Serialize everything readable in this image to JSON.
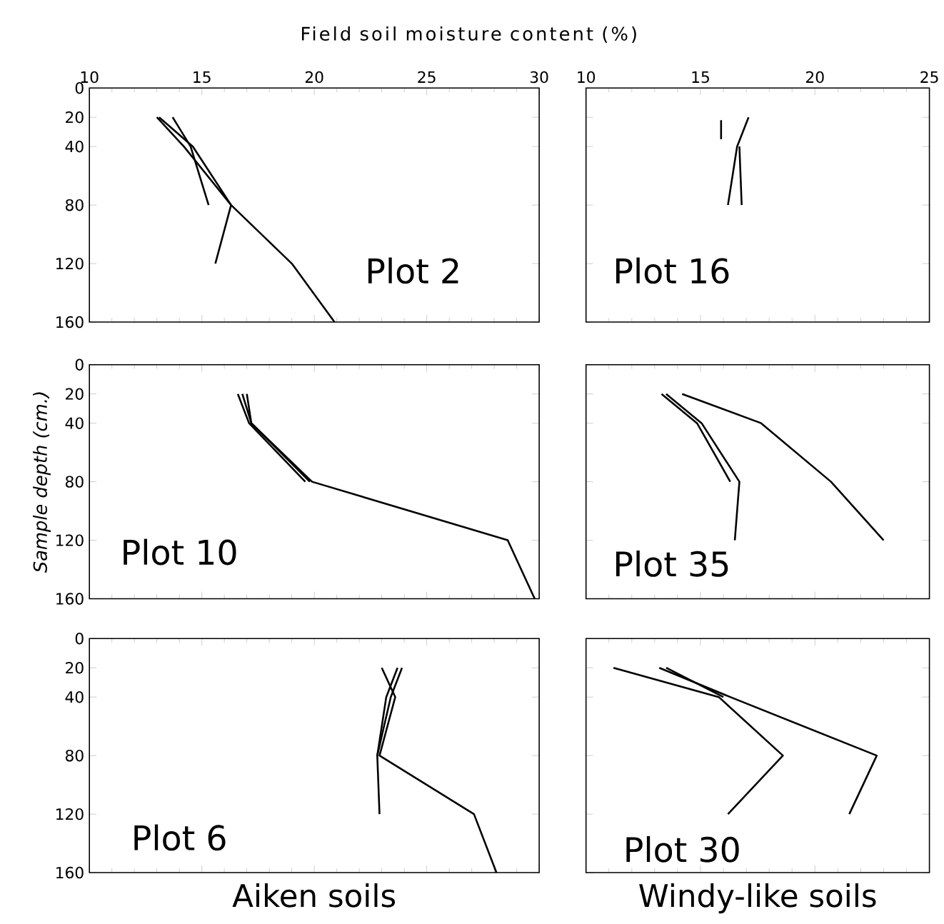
{
  "chart_data": [
    {
      "type": "line",
      "title": "Plot 2",
      "xlabel": "Field soil moisture content (%)",
      "xlim": [
        10,
        30
      ],
      "xticks": [
        10,
        15,
        20,
        25,
        30
      ],
      "ylim": [
        160,
        0
      ],
      "yticks": [
        0,
        20,
        40,
        80,
        120,
        160
      ],
      "line_style": "solid",
      "series": [
        {
          "color": "#000000",
          "x": [
            13.0,
            14.2,
            16.3,
            19.0,
            20.9
          ],
          "values": [
            20,
            40,
            80,
            120,
            160
          ]
        },
        {
          "color": "#000000",
          "x": [
            13.1,
            14.6,
            16.3,
            15.6
          ],
          "values": [
            20,
            40,
            80,
            120
          ]
        },
        {
          "color": "#000000",
          "x": [
            13.7,
            14.5,
            15.3
          ],
          "values": [
            20,
            40,
            80
          ]
        }
      ]
    },
    {
      "type": "line",
      "title": "Plot 16",
      "xlim": [
        10,
        25
      ],
      "xticks": [
        10,
        15,
        20,
        25
      ],
      "ylim": [
        160,
        0
      ],
      "yticks": [
        0,
        20,
        40,
        80,
        120,
        160
      ],
      "tick_labels": "x",
      "line_style": "solid",
      "series": [
        {
          "color": "#000000",
          "x": [
            17.1,
            16.6,
            16.2
          ],
          "values": [
            20,
            40,
            80
          ]
        },
        {
          "color": "#000000",
          "x": [
            15.9,
            15.9
          ],
          "values": [
            22,
            35
          ]
        },
        {
          "color": "#000000",
          "x": [
            16.7,
            16.8
          ],
          "values": [
            40,
            80
          ]
        }
      ]
    },
    {
      "type": "line",
      "title": "Plot 10",
      "ylabel": "Sample depth (cm.)",
      "xlim": [
        10,
        30
      ],
      "xticks": [
        10,
        15,
        20,
        25,
        30
      ],
      "ylim": [
        160,
        0
      ],
      "yticks": [
        0,
        20,
        40,
        80,
        120,
        160
      ],
      "tick_labels": "y",
      "line_style": "solid",
      "series": [
        {
          "color": "#000000",
          "x": [
            16.6,
            17.1,
            19.6
          ],
          "values": [
            20,
            40,
            80
          ]
        },
        {
          "color": "#000000",
          "x": [
            16.8,
            17.2,
            19.9,
            28.6,
            29.8
          ],
          "values": [
            20,
            40,
            80,
            120,
            160
          ]
        },
        {
          "color": "#000000",
          "x": [
            17.0,
            17.2,
            19.8
          ],
          "values": [
            20,
            40,
            80
          ]
        }
      ]
    },
    {
      "type": "line",
      "title": "Plot 35",
      "xlim": [
        10,
        25
      ],
      "xticks": [
        10,
        15,
        20,
        25
      ],
      "ylim": [
        160,
        0
      ],
      "yticks": [
        0,
        20,
        40,
        80,
        120,
        160
      ],
      "tick_labels": false,
      "line_style": "solid",
      "series": [
        {
          "color": "#000000",
          "x": [
            13.3,
            14.85,
            16.3
          ],
          "values": [
            20,
            40,
            80
          ]
        },
        {
          "color": "#000000",
          "x": [
            13.5,
            15.05,
            16.7,
            16.5
          ],
          "values": [
            20,
            40,
            80,
            120
          ]
        },
        {
          "color": "#000000",
          "x": [
            14.2,
            17.65,
            20.7,
            23.0
          ],
          "values": [
            20,
            40,
            80,
            120
          ]
        }
      ]
    },
    {
      "type": "line",
      "title": "Plot 6",
      "annotations": [
        "Aiken soils"
      ],
      "xlim": [
        10,
        30
      ],
      "xticks": [
        10,
        15,
        20,
        25,
        30
      ],
      "ylim": [
        160,
        0
      ],
      "yticks": [
        0,
        20,
        40,
        80,
        120,
        160
      ],
      "tick_labels": "y",
      "line_style": "solid",
      "series": [
        {
          "color": "#000000",
          "x": [
            23.9,
            23.4,
            22.8,
            22.9
          ],
          "values": [
            20,
            40,
            80,
            120
          ]
        },
        {
          "color": "#000000",
          "x": [
            23.0,
            23.6,
            22.9,
            27.1,
            28.1
          ],
          "values": [
            20,
            40,
            80,
            120,
            160
          ]
        },
        {
          "color": "#000000",
          "x": [
            23.7,
            23.2,
            22.8
          ],
          "values": [
            20,
            40,
            80
          ]
        }
      ]
    },
    {
      "type": "line",
      "title": "Plot 30",
      "annotations": [
        "Windy-like soils"
      ],
      "xlim": [
        10,
        25
      ],
      "xticks": [
        10,
        15,
        20,
        25
      ],
      "ylim": [
        160,
        0
      ],
      "yticks": [
        0,
        20,
        40,
        80,
        120,
        160
      ],
      "tick_labels": false,
      "line_style": "solid",
      "series": [
        {
          "color": "#000000",
          "x": [
            11.2,
            15.8,
            18.6,
            16.2
          ],
          "values": [
            20,
            40,
            80,
            120
          ]
        },
        {
          "color": "#000000",
          "x": [
            13.2,
            16.3,
            22.7,
            21.5
          ],
          "values": [
            20,
            40,
            80,
            120
          ]
        },
        {
          "color": "#000000",
          "x": [
            13.5,
            16.0
          ],
          "values": [
            20,
            40
          ]
        }
      ]
    }
  ]
}
